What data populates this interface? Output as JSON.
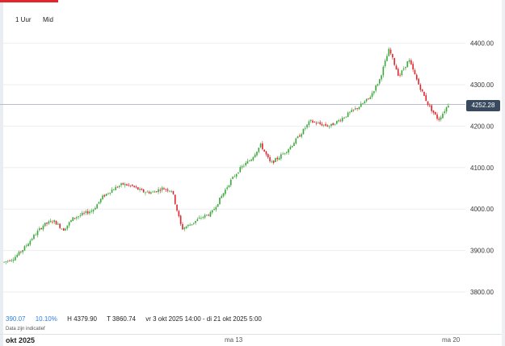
{
  "toolbar": {
    "interval_label": "1 Uur",
    "price_type_label": "Mid"
  },
  "stats": {
    "change": "390.07",
    "change_pct": "10.10%",
    "high": "H 4379.90",
    "low": "T 3860.74",
    "range": "vr 3 okt 2025 14:00 - di 21 okt 2025 5:00"
  },
  "disclaimer": "Data zijn indicatief",
  "x_axis": {
    "month_label": "okt 2025",
    "ticks": [
      "ma 13",
      "ma 20"
    ]
  },
  "current_price_label": "4252.28",
  "colors": {
    "up": "#3aa83a",
    "down": "#e0242b",
    "price_tag": "#3a4a5e",
    "accent": "#e3262b"
  },
  "chart_data": {
    "type": "candlestick",
    "y_ticks": [
      "3800.00",
      "3900.00",
      "4000.00",
      "4100.00",
      "4200.00",
      "4300.00",
      "4400.00"
    ],
    "ylim": [
      3780,
      4480
    ],
    "current_price": 4252.28,
    "grid": true,
    "trend_path": [
      3872,
      3882,
      3905,
      3935,
      3962,
      3972,
      3950,
      3978,
      3988,
      3998,
      4030,
      4048,
      4060,
      4055,
      4042,
      4040,
      4050,
      4045,
      3952,
      3965,
      3980,
      3990,
      4030,
      4070,
      4100,
      4120,
      4155,
      4110,
      4128,
      4150,
      4180,
      4212,
      4205,
      4200,
      4215,
      4232,
      4248,
      4268,
      4310,
      4385,
      4320,
      4360,
      4300,
      4250,
      4215,
      4252
    ]
  }
}
